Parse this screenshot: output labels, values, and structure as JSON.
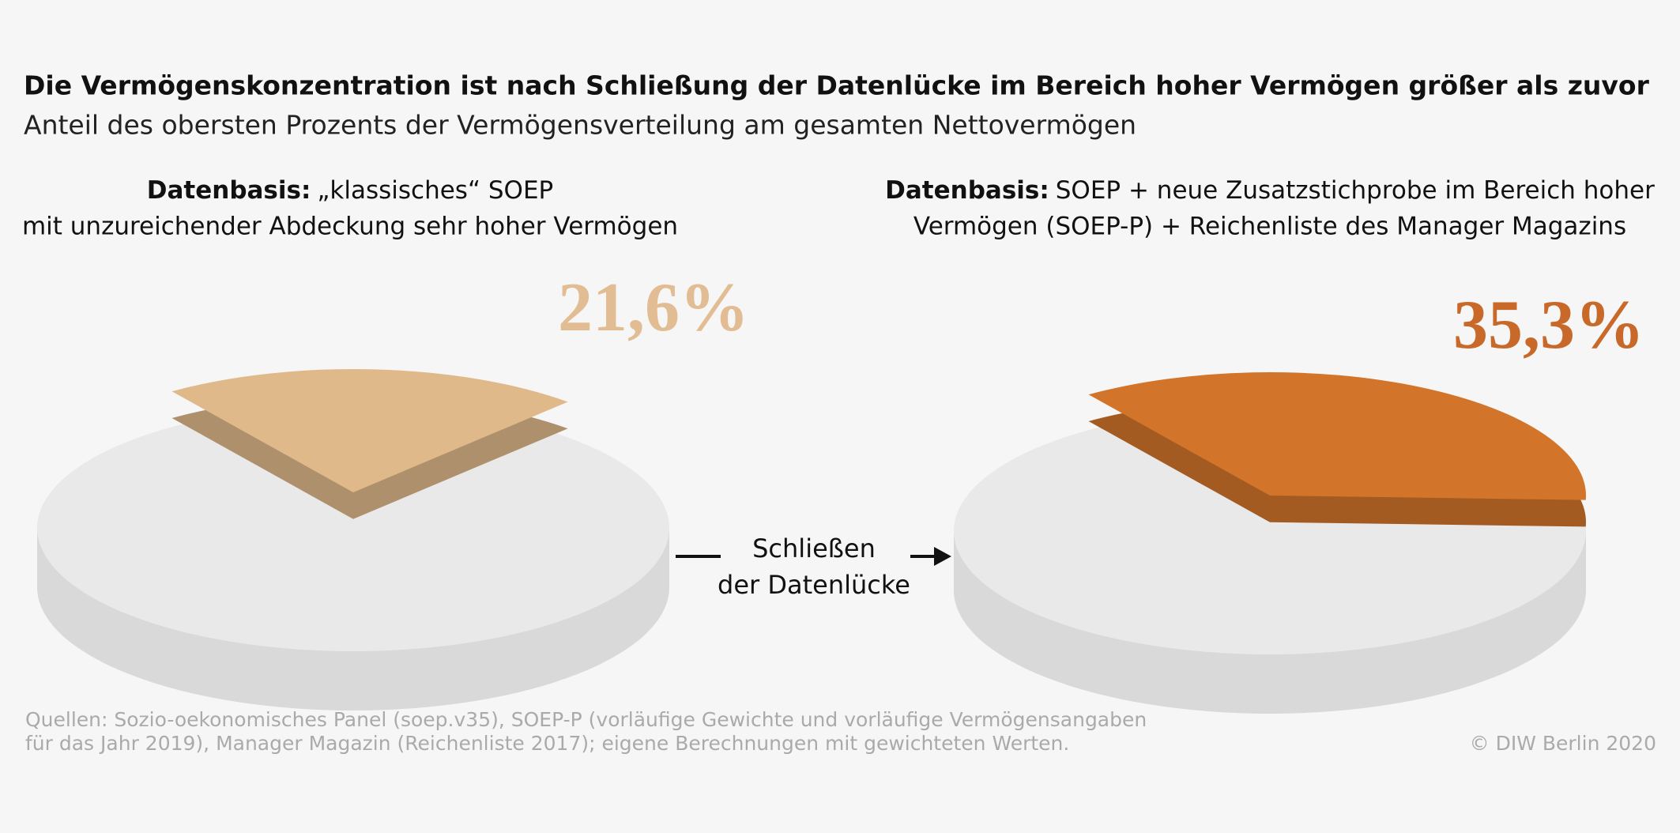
{
  "header": {
    "title": "Die Vermögenskonzentration ist nach Schließung der Datenlücke im Bereich hoher Vermögen größer als zuvor",
    "subtitle": "Anteil des obersten Prozents der Vermögensverteilung am gesamten Nettovermögen"
  },
  "chart_data": [
    {
      "type": "pie",
      "label": "Datenbasis:",
      "lines": [
        "„klassisches“ SOEP",
        "mit unzureichender Abdeckung sehr hoher Vermögen"
      ],
      "values": [
        21.6
      ],
      "value_labels": [
        "21,6%"
      ],
      "color": "#e0b98a",
      "label_color": "#e2bd94"
    },
    {
      "type": "pie",
      "label": "Datenbasis:",
      "lines": [
        "SOEP + neue Zusatzstichprobe im Bereich hoher",
        "Vermögen (SOEP-P) + Reichenliste des Manager Magazins"
      ],
      "values": [
        35.3
      ],
      "value_labels": [
        "35,3%"
      ],
      "color": "#d2752b",
      "label_color": "#c8692a"
    }
  ],
  "arrow": {
    "lines": [
      "Schließen",
      "der Datenlücke"
    ]
  },
  "footer": {
    "sources": [
      "Quellen: Sozio-oekonomisches Panel (soep.v35), SOEP-P (vorläufige Gewichte und vorläufige Vermögensangaben",
      "für das Jahr 2019), Manager Magazin (Reichenliste 2017); eigene Berechnungen mit gewichteten Werten."
    ],
    "copyright": "© DIW Berlin 2020"
  }
}
